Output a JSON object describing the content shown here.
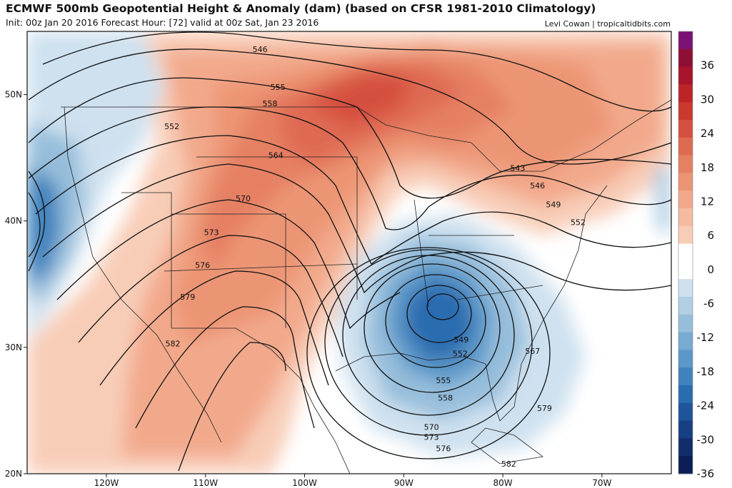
{
  "header": {
    "title": "ECMWF 500mb Geopotential Height & Anomaly (dam) (based on CFSR 1981-2010 Climatology)",
    "subtitle": "Init: 00z Jan 20 2016   Forecast Hour: [72]   valid at 00z Sat, Jan 23 2016",
    "credit": "Levi Cowan | tropicaltidbits.com"
  },
  "map": {
    "lon_range": [
      -128,
      -63
    ],
    "lat_range": [
      20,
      55
    ],
    "lon_ticks": [
      {
        "value": -120,
        "label": "120W"
      },
      {
        "value": -110,
        "label": "110W"
      },
      {
        "value": -100,
        "label": "100W"
      },
      {
        "value": -90,
        "label": "90W"
      },
      {
        "value": -80,
        "label": "80W"
      },
      {
        "value": -70,
        "label": "70W"
      }
    ],
    "lat_ticks": [
      {
        "value": 50,
        "label": "50N"
      },
      {
        "value": 40,
        "label": "40N"
      },
      {
        "value": 30,
        "label": "30N"
      },
      {
        "value": 20,
        "label": "20N"
      }
    ],
    "contour_labels": [
      {
        "text": "546",
        "lon": -104.5,
        "lat": 53.6
      },
      {
        "text": "555",
        "lon": -102.7,
        "lat": 50.6
      },
      {
        "text": "558",
        "lon": -103.5,
        "lat": 49.3
      },
      {
        "text": "552",
        "lon": -113.4,
        "lat": 47.5
      },
      {
        "text": "564",
        "lon": -102.9,
        "lat": 45.2
      },
      {
        "text": "570",
        "lon": -106.2,
        "lat": 41.8
      },
      {
        "text": "573",
        "lon": -109.4,
        "lat": 39.1
      },
      {
        "text": "576",
        "lon": -110.3,
        "lat": 36.5
      },
      {
        "text": "579",
        "lon": -111.8,
        "lat": 34.0
      },
      {
        "text": "582",
        "lon": -113.3,
        "lat": 30.3
      },
      {
        "text": "543",
        "lon": -78.5,
        "lat": 44.2
      },
      {
        "text": "546",
        "lon": -76.5,
        "lat": 42.8
      },
      {
        "text": "549",
        "lon": -74.9,
        "lat": 41.3
      },
      {
        "text": "552",
        "lon": -72.4,
        "lat": 39.9
      },
      {
        "text": "549",
        "lon": -84.2,
        "lat": 30.6
      },
      {
        "text": "552",
        "lon": -84.3,
        "lat": 29.5
      },
      {
        "text": "555",
        "lon": -86.0,
        "lat": 27.4
      },
      {
        "text": "558",
        "lon": -85.8,
        "lat": 26.0
      },
      {
        "text": "567",
        "lon": -77.0,
        "lat": 29.7
      },
      {
        "text": "579",
        "lon": -75.8,
        "lat": 25.2
      },
      {
        "text": "570",
        "lon": -87.2,
        "lat": 23.7
      },
      {
        "text": "573",
        "lon": -87.2,
        "lat": 22.9
      },
      {
        "text": "576",
        "lon": -86.0,
        "lat": 22.0
      },
      {
        "text": "582",
        "lon": -79.4,
        "lat": 20.8
      }
    ]
  },
  "colorbar": {
    "levels": [
      {
        "value": 39,
        "color": "#7b1174"
      },
      {
        "value": 36,
        "color": "#8e0f34"
      },
      {
        "value": 33,
        "color": "#a7142c"
      },
      {
        "value": 30,
        "color": "#bb2528"
      },
      {
        "value": 27,
        "color": "#c9392e"
      },
      {
        "value": 24,
        "color": "#d55040"
      },
      {
        "value": 21,
        "color": "#df6a52"
      },
      {
        "value": 18,
        "color": "#e58063"
      },
      {
        "value": 15,
        "color": "#ec9575"
      },
      {
        "value": 12,
        "color": "#f2a98b"
      },
      {
        "value": 9,
        "color": "#f5bba0"
      },
      {
        "value": 6,
        "color": "#f8cdb8"
      },
      {
        "value": 3,
        "color": "#ffffff"
      },
      {
        "value": 0,
        "color": "#ffffff"
      },
      {
        "value": -3,
        "color": "#cfe1ef"
      },
      {
        "value": -6,
        "color": "#b2cfe4"
      },
      {
        "value": -9,
        "color": "#96bedb"
      },
      {
        "value": -12,
        "color": "#78abd2"
      },
      {
        "value": -15,
        "color": "#5b97c8"
      },
      {
        "value": -18,
        "color": "#3f82bd"
      },
      {
        "value": -21,
        "color": "#2a6cb0"
      },
      {
        "value": -24,
        "color": "#1e549a"
      },
      {
        "value": -27,
        "color": "#173f83"
      },
      {
        "value": -30,
        "color": "#122d6b"
      },
      {
        "value": -33,
        "color": "#0d1e55"
      }
    ],
    "tick_labels": [
      "36",
      "30",
      "24",
      "18",
      "12",
      "6",
      "0",
      "-6",
      "-12",
      "-18",
      "-24",
      "-30",
      "-36"
    ]
  },
  "style": {
    "border_color": "#222222",
    "contour_color": "#111111"
  }
}
